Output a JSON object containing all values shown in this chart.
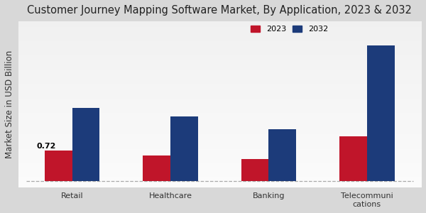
{
  "title": "Customer Journey Mapping Software Market, By Application, 2023 & 2032",
  "ylabel": "Market Size in USD Billion",
  "categories": [
    "Retail",
    "Healthcare",
    "Banking",
    "Telecommuni\ncations"
  ],
  "values_2023": [
    0.72,
    0.6,
    0.52,
    1.05
  ],
  "values_2032": [
    1.72,
    1.52,
    1.22,
    3.2
  ],
  "color_2023": "#c0152a",
  "color_2032": "#1c3b7a",
  "bar_annotation": "0.72",
  "background_color": "#e0e0e0",
  "title_fontsize": 10.5,
  "axis_fontsize": 8.5,
  "tick_fontsize": 8,
  "legend_labels": [
    "2023",
    "2032"
  ],
  "bar_width": 0.28,
  "dashed_line_color": "#aaaaaa"
}
